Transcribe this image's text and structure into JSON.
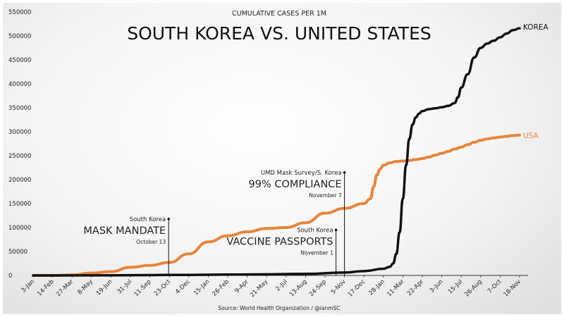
{
  "chart_data": {
    "type": "line",
    "title": "SOUTH KOREA VS. UNITED STATES",
    "subtitle": "CUMULATIVE CASES PER 1M",
    "source": "Source: World Health Organization / @ianmSC",
    "x_tick_labels": [
      "3-Jan",
      "14-Feb",
      "27-Mar",
      "8-May",
      "19-Jun",
      "31-Jul",
      "11-Sep",
      "23-Oct",
      "4-Dec",
      "15-Jan",
      "26-Feb",
      "9-Apr",
      "21-May",
      "2-Jul",
      "13-Aug",
      "24-Sep",
      "5-Nov",
      "17-Dec",
      "28-Jan",
      "11-Mar",
      "22-Apr",
      "3-Jun",
      "15-Jul",
      "26-Aug",
      "7-Oct",
      "18-Nov"
    ],
    "y_ticks": [
      0,
      50000,
      100000,
      150000,
      200000,
      250000,
      300000,
      350000,
      400000,
      450000,
      500000,
      550000
    ],
    "y_tick_labels": [
      "0",
      "50000",
      "100000",
      "150000",
      "200000",
      "250000",
      "300000",
      "350000",
      "400000",
      "450000",
      "500000",
      "550000"
    ],
    "ylim": [
      0,
      550000
    ],
    "grid": false,
    "series": [
      {
        "name": "KOREA",
        "color": "#111111",
        "x": [
          "3-Jan",
          "8-May",
          "11-Sep",
          "23-Oct",
          "4-Dec",
          "15-Jan",
          "9-Apr",
          "13-Aug",
          "5-Nov",
          "17-Dec",
          "28-Jan",
          "11-Feb",
          "18-Feb",
          "25-Feb",
          "4-Mar",
          "11-Mar",
          "18-Mar",
          "25-Mar",
          "1-Apr",
          "8-Apr",
          "15-Apr",
          "22-Apr",
          "6-May",
          "20-May",
          "3-Jun",
          "17-Jun",
          "1-Jul",
          "8-Jul",
          "15-Jul",
          "29-Jul",
          "12-Aug",
          "26-Aug",
          "9-Sep",
          "23-Sep",
          "7-Oct",
          "21-Oct",
          "4-Nov",
          "18-Nov"
        ],
        "values": [
          0,
          200,
          700,
          1000,
          1200,
          1500,
          2000,
          3200,
          6000,
          9000,
          14000,
          18000,
          25000,
          45000,
          90000,
          160000,
          230000,
          285000,
          315000,
          330000,
          338000,
          343000,
          347000,
          349000,
          351000,
          354000,
          360000,
          372000,
          392000,
          420000,
          455000,
          475000,
          484000,
          490000,
          497000,
          505000,
          512000,
          516000
        ]
      },
      {
        "name": "USA",
        "color": "#e8843a",
        "x": [
          "3-Jan",
          "14-Feb",
          "27-Mar",
          "8-May",
          "19-Jun",
          "31-Jul",
          "11-Sep",
          "23-Oct",
          "4-Dec",
          "15-Jan",
          "26-Feb",
          "9-Apr",
          "21-May",
          "2-Jul",
          "13-Aug",
          "24-Sep",
          "5-Nov",
          "17-Dec",
          "31-Dec",
          "7-Jan",
          "14-Jan",
          "21-Jan",
          "28-Jan",
          "11-Feb",
          "25-Feb",
          "11-Mar",
          "25-Mar",
          "8-Apr",
          "22-Apr",
          "6-May",
          "20-May",
          "3-Jun",
          "17-Jun",
          "1-Jul",
          "15-Jul",
          "29-Jul",
          "12-Aug",
          "26-Aug",
          "9-Sep",
          "23-Sep",
          "7-Oct",
          "21-Oct",
          "4-Nov",
          "18-Nov"
        ],
        "values": [
          0,
          0,
          1000,
          5000,
          8000,
          17000,
          21000,
          27000,
          45000,
          70000,
          83000,
          91000,
          98000,
          100000,
          110000,
          130000,
          140000,
          150000,
          160000,
          185000,
          210000,
          222000,
          230000,
          235000,
          238000,
          239000,
          240000,
          242000,
          244000,
          247000,
          251000,
          255000,
          259000,
          264000,
          268000,
          273000,
          278000,
          282000,
          285000,
          287000,
          289000,
          290500,
          292000,
          293000
        ]
      }
    ],
    "series_labels": {
      "korea": "KOREA",
      "usa": "USA"
    },
    "annotations": [
      {
        "title": "South Korea",
        "headline": "MASK MANDATE",
        "date": "October 13",
        "x": "23-Oct",
        "y": 118000
      },
      {
        "title": "UMD Mask Survey/S. Korea",
        "headline": "99% COMPLIANCE",
        "date": "November 7",
        "x": "5-Nov",
        "y": 215000
      },
      {
        "title": "South Korea",
        "headline": "VACCINE PASSPORTS",
        "date": "November 1",
        "x": "5-Nov",
        "y": 95000
      }
    ]
  }
}
